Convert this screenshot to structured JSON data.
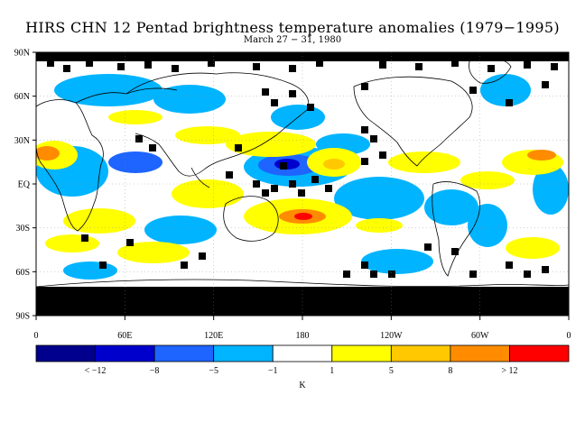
{
  "title": "HIRS CHN 12 Pentad brightness temperature anomalies (1979−1995)",
  "subtitle": "March 27 − 31, 1980",
  "lat_labels": [
    "90N",
    "60N",
    "30N",
    "EQ",
    "30S",
    "60S",
    "90S"
  ],
  "lon_labels": [
    "0",
    "60E",
    "120E",
    "180",
    "120W",
    "60W",
    "0"
  ],
  "colorbar": {
    "unit": "K",
    "labels": [
      "< −12",
      "−8",
      "−5",
      "−1",
      "1",
      "5",
      "8",
      "> 12"
    ],
    "colors": [
      "#00008c",
      "#0000cd",
      "#1e64ff",
      "#00b4ff",
      "#ffffff",
      "#ffff00",
      "#ffc800",
      "#ff8c00",
      "#ff0000"
    ]
  },
  "missing_data_color": "#000000"
}
